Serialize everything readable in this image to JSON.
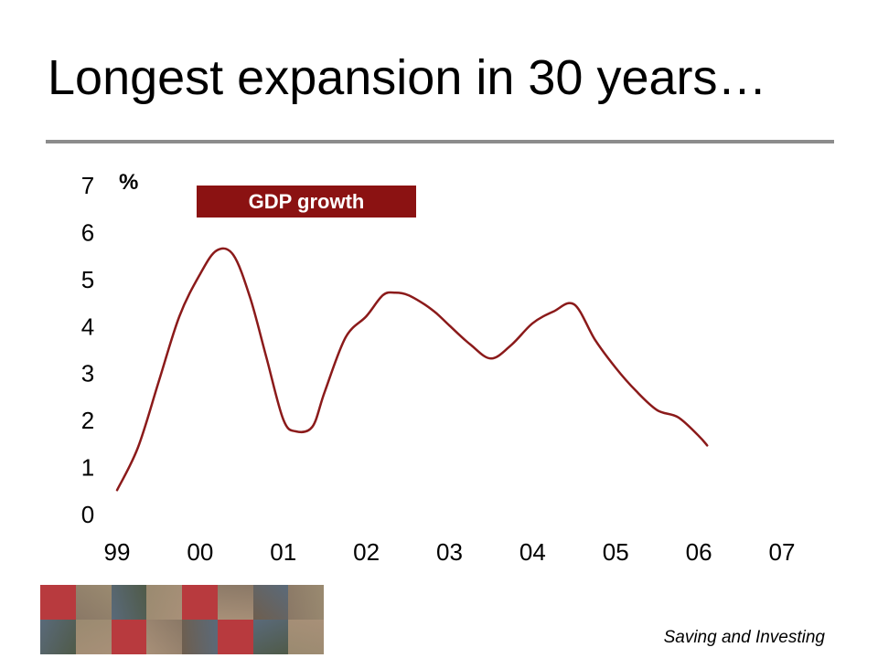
{
  "slide": {
    "title": "Longest expansion in 30 years…",
    "footer": "Saving and Investing"
  },
  "colors": {
    "line": "#8b1a1a",
    "legend_bg": "#8b1212",
    "rule": "#8c8c8c",
    "tile_red": "#b83a3e",
    "tile_photo": "#7a6a5a"
  },
  "mosaic": {
    "tiles": [
      "red",
      "photo",
      "photo",
      "photo",
      "red",
      "photo",
      "photo",
      "photo",
      "photo",
      "photo",
      "red",
      "photo",
      "photo",
      "red",
      "photo",
      "photo"
    ]
  },
  "chart_data": {
    "type": "line",
    "title": "",
    "ylabel": "%",
    "xlabel": "",
    "categories": [
      "99",
      "00",
      "01",
      "02",
      "03",
      "04",
      "05",
      "06",
      "07"
    ],
    "yticks": [
      "0",
      "1",
      "2",
      "3",
      "4",
      "5",
      "6",
      "7"
    ],
    "ylim": [
      0,
      7
    ],
    "xlim": [
      0,
      8
    ],
    "grid": false,
    "legend": {
      "position": "top-left"
    },
    "series": [
      {
        "name": "GDP growth",
        "x": [
          0.0,
          0.25,
          0.5,
          0.75,
          1.0,
          1.2,
          1.4,
          1.6,
          1.8,
          2.0,
          2.15,
          2.35,
          2.5,
          2.75,
          3.0,
          3.2,
          3.35,
          3.5,
          3.7,
          3.85,
          4.0,
          4.25,
          4.5,
          4.75,
          5.0,
          5.25,
          5.5,
          5.75,
          6.0,
          6.25,
          6.5,
          6.75,
          7.0,
          7.1
        ],
        "y": [
          0.5,
          1.4,
          2.8,
          4.2,
          5.1,
          5.6,
          5.5,
          4.6,
          3.3,
          2.0,
          1.75,
          1.85,
          2.6,
          3.75,
          4.2,
          4.65,
          4.7,
          4.65,
          4.45,
          4.25,
          4.0,
          3.6,
          3.3,
          3.6,
          4.05,
          4.3,
          4.45,
          3.7,
          3.1,
          2.6,
          2.2,
          2.05,
          1.65,
          1.45
        ]
      }
    ]
  }
}
